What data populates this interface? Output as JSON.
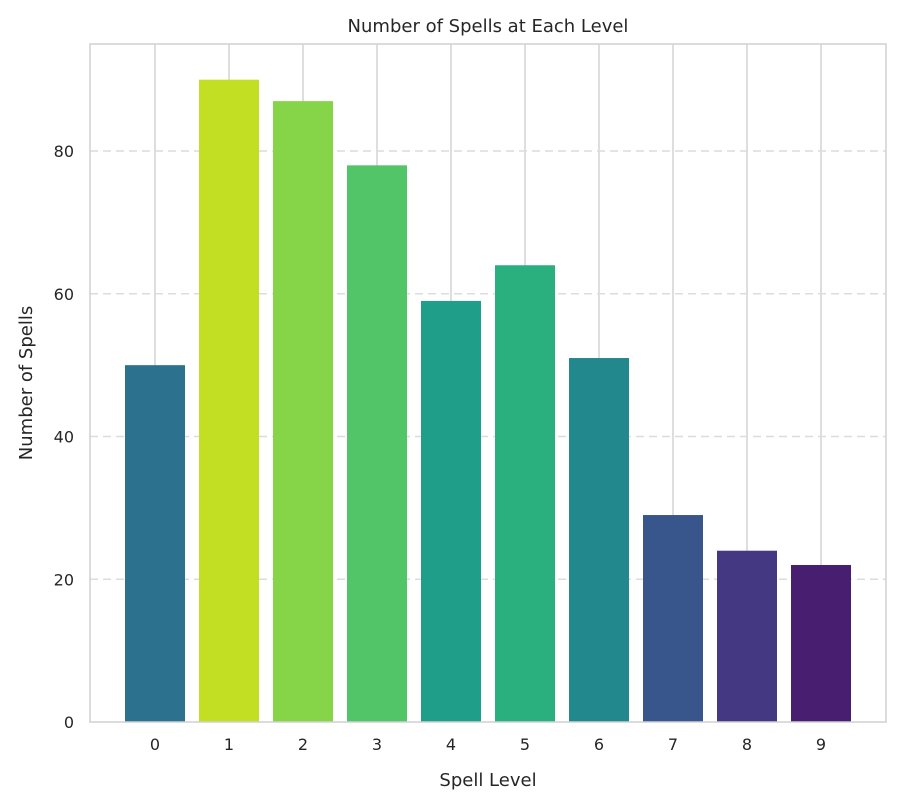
{
  "chart_data": {
    "type": "bar",
    "title": "Number of Spells at Each Level",
    "xlabel": "Spell Level",
    "ylabel": "Number of Spells",
    "categories": [
      "0",
      "1",
      "2",
      "3",
      "4",
      "5",
      "6",
      "7",
      "8",
      "9"
    ],
    "values": [
      50,
      90,
      87,
      78,
      59,
      64,
      51,
      29,
      24,
      22
    ],
    "colors": [
      "#2c728e",
      "#c2df23",
      "#86d549",
      "#52c569",
      "#1f9e89",
      "#2ab07f",
      "#23888e",
      "#39568c",
      "#453882",
      "#481f70"
    ],
    "ylim": [
      0,
      95
    ],
    "yticks": [
      0,
      20,
      40,
      60,
      80
    ],
    "grid": true
  }
}
